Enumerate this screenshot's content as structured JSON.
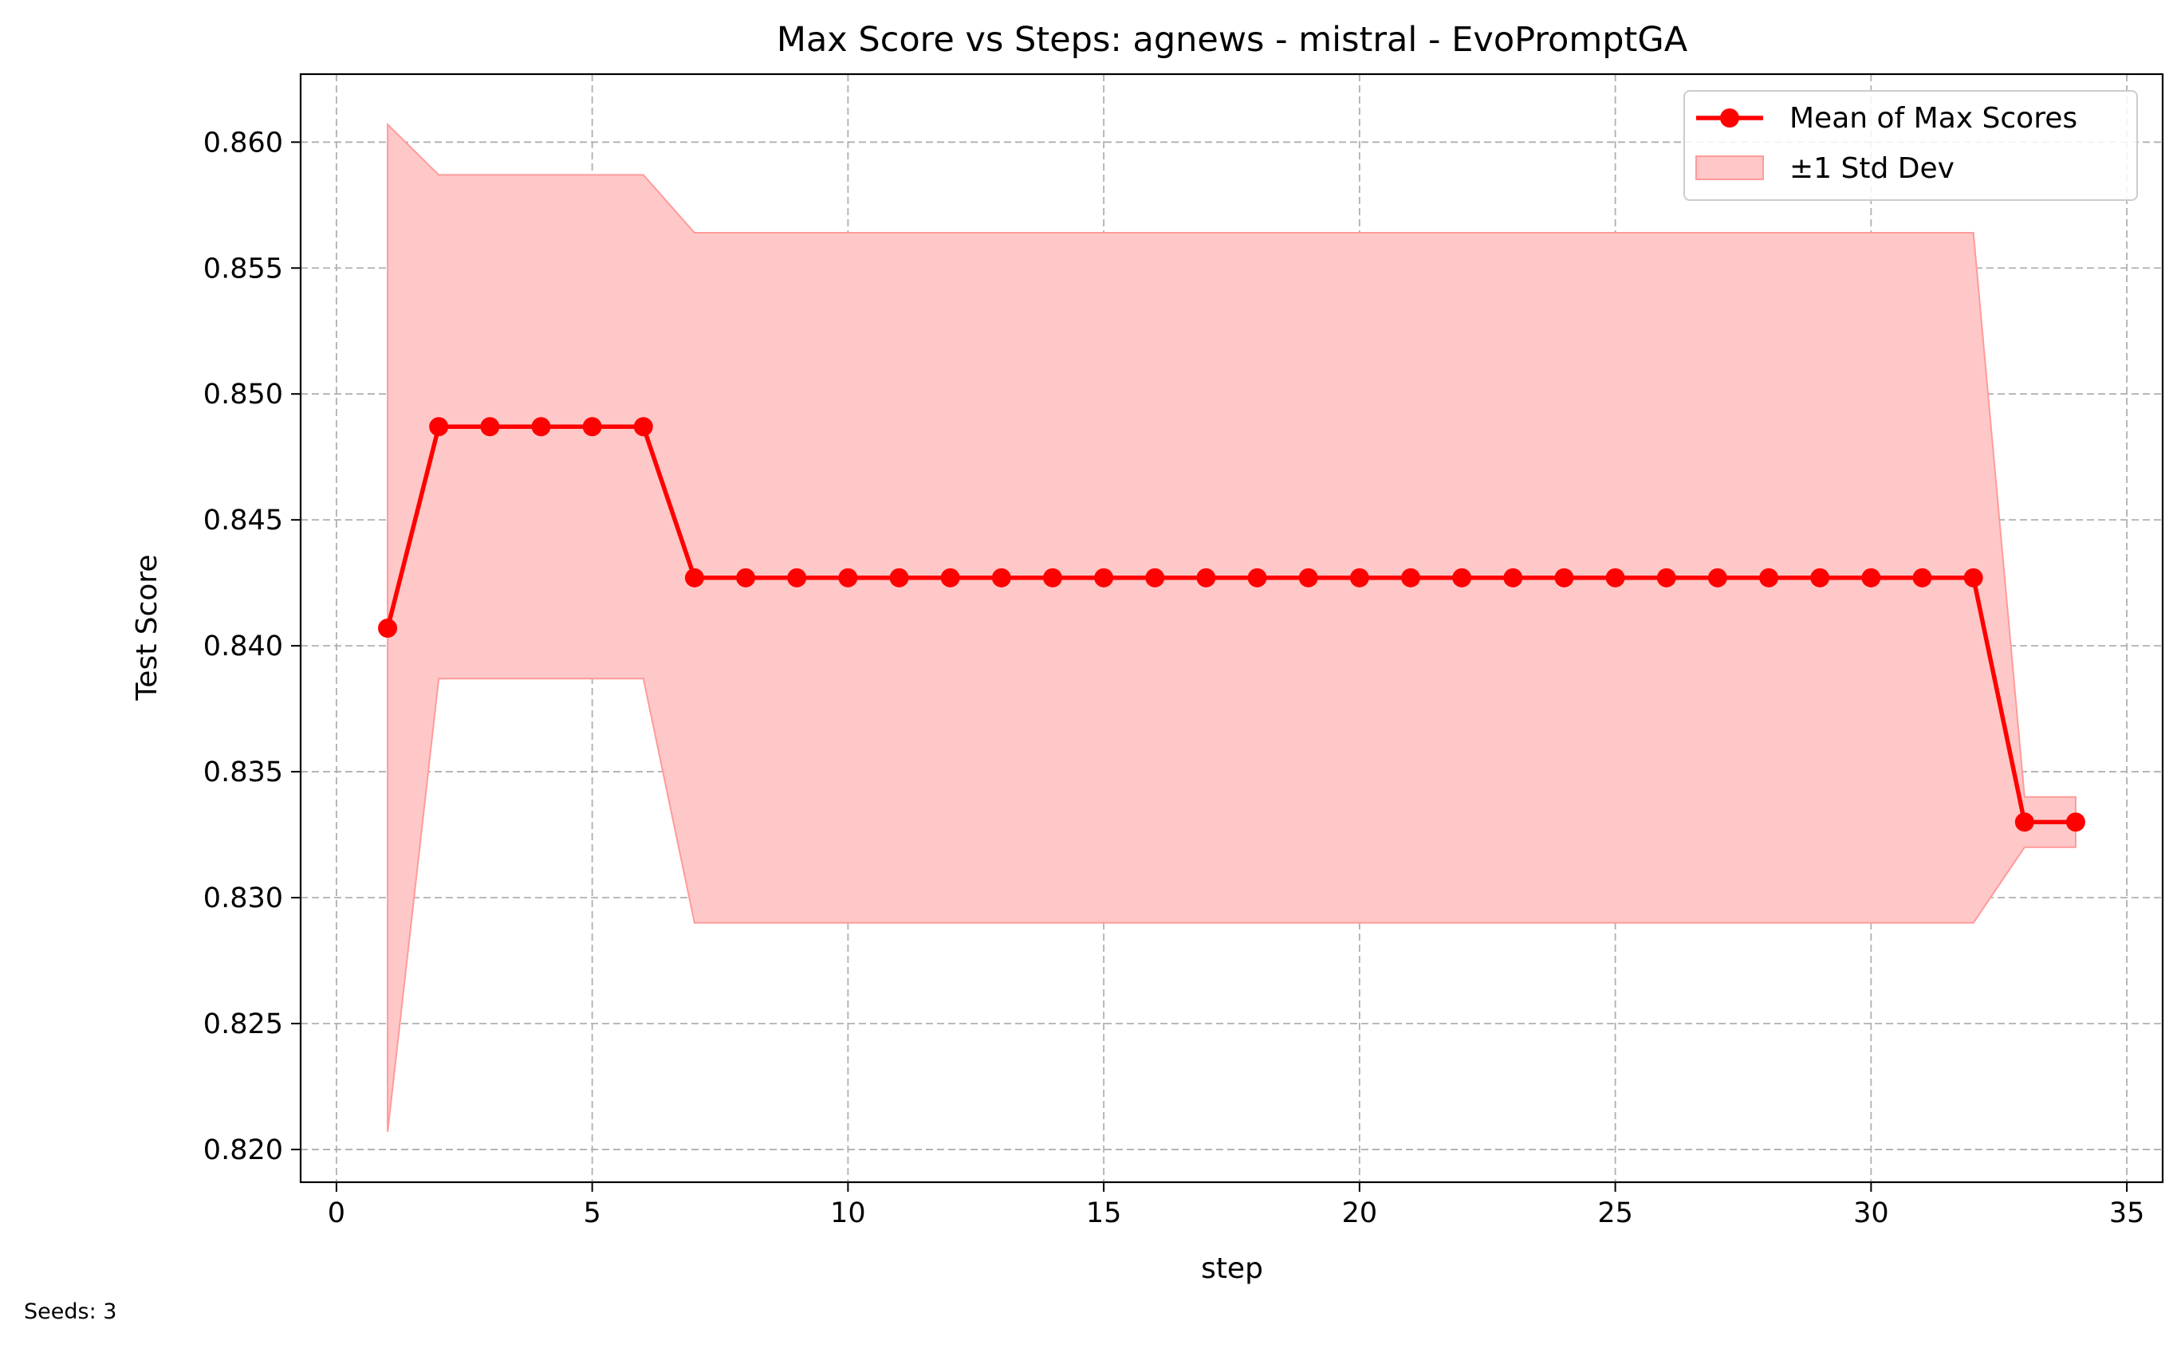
{
  "footnote": "Seeds: 3",
  "colors": {
    "line": "#ff0000",
    "band_fill": "#ffc8c8",
    "band_edge": "#ff9a9a",
    "grid": "#b0b0b0"
  },
  "chart_data": {
    "type": "line",
    "title": "Max Score vs Steps: agnews - mistral - EvoPromptGA",
    "xlabel": "step",
    "ylabel": "Test Score",
    "xlim": [
      -0.7,
      35.7
    ],
    "ylim": [
      0.8187,
      0.8627
    ],
    "xticks": [
      0,
      5,
      10,
      15,
      20,
      25,
      30,
      35
    ],
    "yticks": [
      0.82,
      0.825,
      0.83,
      0.835,
      0.84,
      0.845,
      0.85,
      0.855,
      0.86
    ],
    "xtick_labels": [
      "0",
      "5",
      "10",
      "15",
      "20",
      "25",
      "30",
      "35"
    ],
    "ytick_labels": [
      "0.820",
      "0.825",
      "0.830",
      "0.835",
      "0.840",
      "0.845",
      "0.850",
      "0.855",
      "0.860"
    ],
    "grid": true,
    "legend_position": "top-right",
    "legend": [
      "Mean of Max Scores",
      "±1 Std Dev"
    ],
    "x": [
      1,
      2,
      3,
      4,
      5,
      6,
      7,
      8,
      9,
      10,
      11,
      12,
      13,
      14,
      15,
      16,
      17,
      18,
      19,
      20,
      21,
      22,
      23,
      24,
      25,
      26,
      27,
      28,
      29,
      30,
      31,
      32,
      33,
      34
    ],
    "series": [
      {
        "name": "Mean of Max Scores",
        "values": [
          0.8407,
          0.8487,
          0.8487,
          0.8487,
          0.8487,
          0.8487,
          0.8427,
          0.8427,
          0.8427,
          0.8427,
          0.8427,
          0.8427,
          0.8427,
          0.8427,
          0.8427,
          0.8427,
          0.8427,
          0.8427,
          0.8427,
          0.8427,
          0.8427,
          0.8427,
          0.8427,
          0.8427,
          0.8427,
          0.8427,
          0.8427,
          0.8427,
          0.8427,
          0.8427,
          0.8427,
          0.8427,
          0.833,
          0.833
        ]
      }
    ],
    "band": {
      "name": "±1 Std Dev",
      "upper": [
        0.8607,
        0.8587,
        0.8587,
        0.8587,
        0.8587,
        0.8587,
        0.8564,
        0.8564,
        0.8564,
        0.8564,
        0.8564,
        0.8564,
        0.8564,
        0.8564,
        0.8564,
        0.8564,
        0.8564,
        0.8564,
        0.8564,
        0.8564,
        0.8564,
        0.8564,
        0.8564,
        0.8564,
        0.8564,
        0.8564,
        0.8564,
        0.8564,
        0.8564,
        0.8564,
        0.8564,
        0.8564,
        0.834,
        0.834
      ],
      "lower": [
        0.8207,
        0.8387,
        0.8387,
        0.8387,
        0.8387,
        0.8387,
        0.829,
        0.829,
        0.829,
        0.829,
        0.829,
        0.829,
        0.829,
        0.829,
        0.829,
        0.829,
        0.829,
        0.829,
        0.829,
        0.829,
        0.829,
        0.829,
        0.829,
        0.829,
        0.829,
        0.829,
        0.829,
        0.829,
        0.829,
        0.829,
        0.829,
        0.829,
        0.832,
        0.832
      ]
    }
  }
}
